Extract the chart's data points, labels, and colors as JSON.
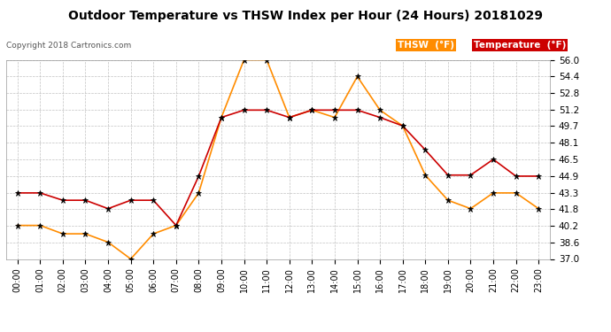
{
  "title": "Outdoor Temperature vs THSW Index per Hour (24 Hours) 20181029",
  "copyright": "Copyright 2018 Cartronics.com",
  "hours": [
    "00:00",
    "01:00",
    "02:00",
    "03:00",
    "04:00",
    "05:00",
    "06:00",
    "07:00",
    "08:00",
    "09:00",
    "10:00",
    "11:00",
    "12:00",
    "13:00",
    "14:00",
    "15:00",
    "16:00",
    "17:00",
    "18:00",
    "19:00",
    "20:00",
    "21:00",
    "22:00",
    "23:00"
  ],
  "temperature": [
    43.3,
    43.3,
    42.6,
    42.6,
    41.8,
    42.6,
    42.6,
    40.2,
    44.9,
    50.5,
    51.2,
    51.2,
    50.5,
    51.2,
    51.2,
    51.2,
    50.5,
    49.7,
    47.4,
    45.0,
    45.0,
    46.5,
    44.9,
    44.9
  ],
  "thsw": [
    40.2,
    40.2,
    39.4,
    39.4,
    38.6,
    37.0,
    39.4,
    40.2,
    43.3,
    50.5,
    56.0,
    56.0,
    50.5,
    51.2,
    50.5,
    54.4,
    51.2,
    49.7,
    45.0,
    42.6,
    41.8,
    43.3,
    43.3,
    41.8
  ],
  "temp_color": "#cc0000",
  "thsw_color": "#ff8c00",
  "ylim_min": 37.0,
  "ylim_max": 56.0,
  "yticks": [
    37.0,
    38.6,
    40.2,
    41.8,
    43.3,
    44.9,
    46.5,
    48.1,
    49.7,
    51.2,
    52.8,
    54.4,
    56.0
  ],
  "bg_color": "#ffffff",
  "grid_color": "#bbbbbb",
  "legend_thsw_bg": "#ff8c00",
  "legend_temp_bg": "#cc0000",
  "legend_text_color": "#ffffff",
  "legend_thsw_label": "THSW  (°F)",
  "legend_temp_label": "Temperature  (°F)"
}
